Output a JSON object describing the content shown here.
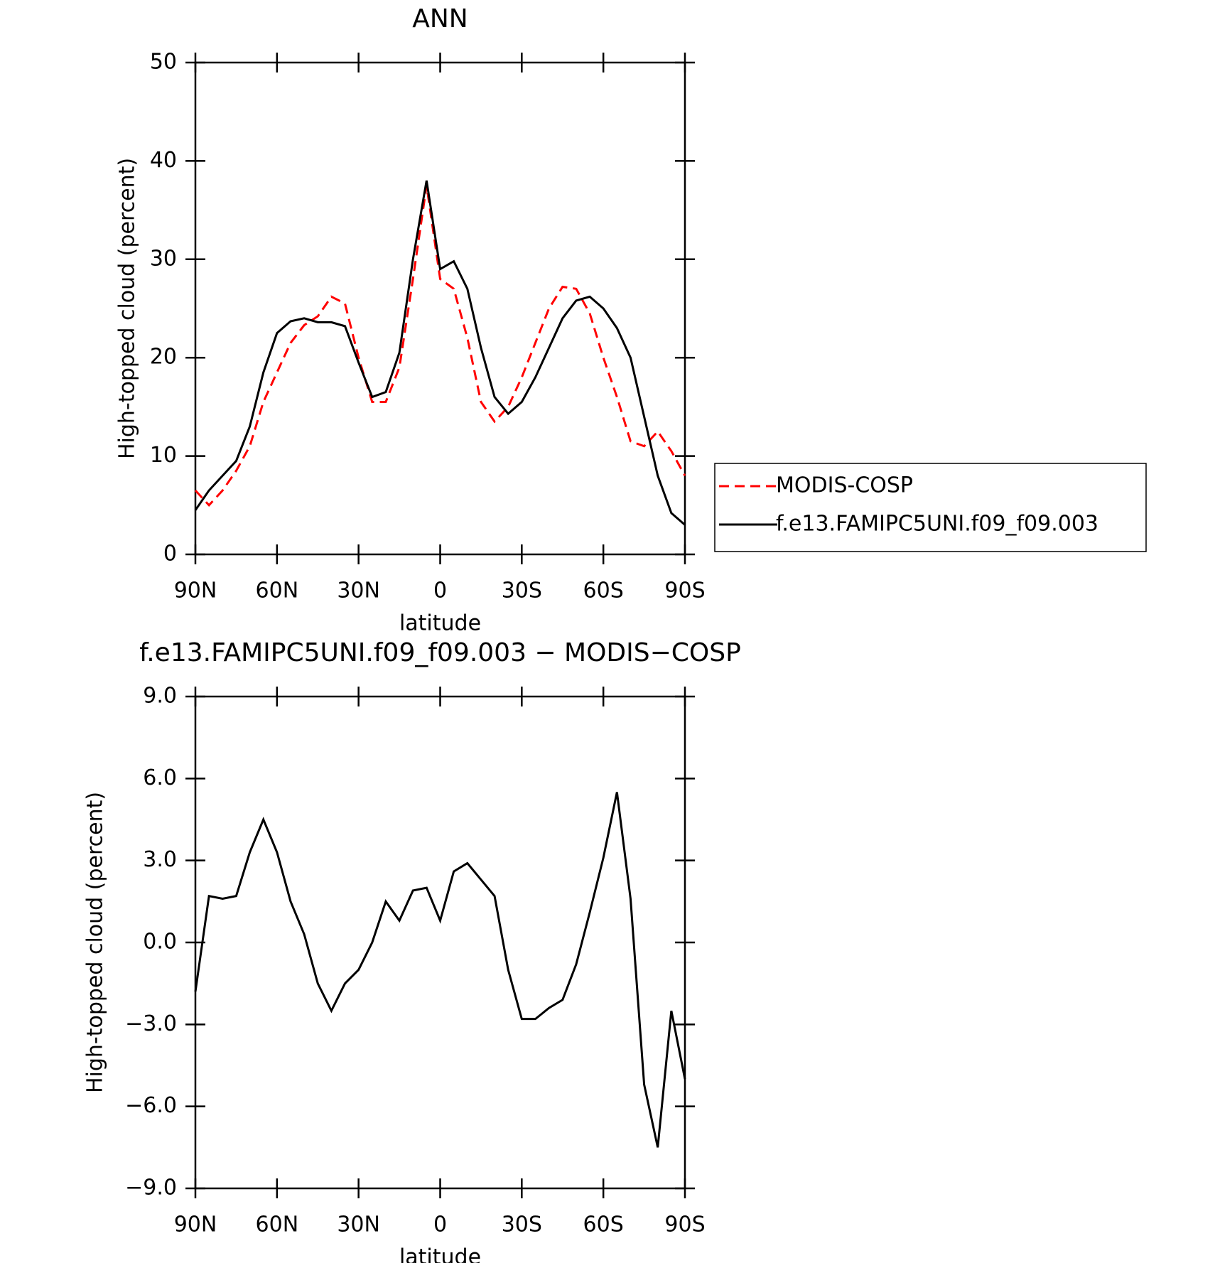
{
  "chart_data": [
    {
      "type": "line",
      "title": "ANN",
      "xlabel": "latitude",
      "ylabel": "High-topped cloud (percent)",
      "x": [
        90,
        85,
        80,
        75,
        70,
        65,
        60,
        55,
        50,
        45,
        40,
        35,
        30,
        25,
        20,
        15,
        10,
        5,
        0,
        -5,
        -10,
        -15,
        -20,
        -25,
        -30,
        -35,
        -40,
        -45,
        -50,
        -55,
        -60,
        -65,
        -70,
        -75,
        -80,
        -85,
        -90
      ],
      "series": [
        {
          "name": "MODIS-COSP",
          "color": "#ff0000",
          "dash": true,
          "values": [
            6.5,
            5,
            6.5,
            8.5,
            11,
            15.5,
            18.5,
            21.5,
            23.3,
            24.2,
            26.2,
            25.5,
            20,
            15.5,
            15.5,
            19,
            28,
            37.5,
            28,
            27,
            22,
            15.5,
            13.5,
            15,
            18,
            21.5,
            25,
            27.2,
            27,
            24.5,
            20,
            16,
            11.5,
            11,
            12.5,
            10.5,
            8
          ]
        },
        {
          "name": "f.e13.FAMIPC5UNI.f09_f09.003",
          "color": "#000000",
          "dash": false,
          "values": [
            4.5,
            6.5,
            8,
            9.5,
            13,
            18.5,
            22.5,
            23.7,
            24,
            23.6,
            23.6,
            23.2,
            19.5,
            16,
            16.5,
            20.5,
            30,
            38,
            29,
            29.8,
            27,
            21,
            16,
            14.3,
            15.5,
            18,
            21,
            24,
            25.8,
            26.2,
            25,
            23,
            20,
            14,
            8,
            4.2,
            3
          ]
        }
      ],
      "xlim": [
        90,
        -90
      ],
      "xticks": [
        {
          "value": 90,
          "label": "90N"
        },
        {
          "value": 60,
          "label": "60N"
        },
        {
          "value": 30,
          "label": "30N"
        },
        0,
        {
          "value": -30,
          "label": "30S"
        },
        {
          "value": -60,
          "label": "60S"
        },
        {
          "value": -90,
          "label": "90S"
        }
      ],
      "ylim": [
        0,
        50
      ],
      "yticks": [
        0,
        10,
        20,
        30,
        40,
        50
      ]
    },
    {
      "type": "line",
      "title": "f.e13.FAMIPC5UNI.f09_f09.003 − MODIS−COSP",
      "xlabel": "latitude",
      "ylabel": "High-topped cloud (percent)",
      "x": [
        90,
        85,
        80,
        75,
        70,
        65,
        60,
        55,
        50,
        45,
        40,
        35,
        30,
        25,
        20,
        15,
        10,
        5,
        0,
        -5,
        -10,
        -15,
        -20,
        -25,
        -30,
        -35,
        -40,
        -45,
        -50,
        -55,
        -60,
        -65,
        -70,
        -75,
        -80,
        -85,
        -90
      ],
      "series": [
        {
          "color": "#000000",
          "dash": false,
          "values": [
            -1.8,
            1.7,
            1.6,
            1.7,
            3.3,
            4.5,
            3.3,
            1.5,
            0.3,
            -1.5,
            -2.5,
            -1.5,
            -1.0,
            0.0,
            1.5,
            0.8,
            1.9,
            2.0,
            0.8,
            2.6,
            2.9,
            2.3,
            1.7,
            -1.0,
            -2.8,
            -2.8,
            -2.4,
            -2.1,
            -0.8,
            1.1,
            3.1,
            5.5,
            1.6,
            -5.2,
            -7.5,
            -2.5,
            -5.0
          ]
        }
      ],
      "xlim": [
        90,
        -90
      ],
      "xticks": [
        {
          "value": 90,
          "label": "90N"
        },
        {
          "value": 60,
          "label": "60N"
        },
        {
          "value": 30,
          "label": "30N"
        },
        0,
        {
          "value": -30,
          "label": "30S"
        },
        {
          "value": -60,
          "label": "60S"
        },
        {
          "value": -90,
          "label": "90S"
        }
      ],
      "ylim": [
        -9,
        9
      ],
      "yticks": [
        {
          "value": -9,
          "label": "−9.0"
        },
        {
          "value": -6,
          "label": "−6.0"
        },
        {
          "value": -3,
          "label": "−3.0"
        },
        {
          "value": 0,
          "label": "0.0"
        },
        {
          "value": 3,
          "label": "3.0"
        },
        {
          "value": 6,
          "label": "6.0"
        },
        {
          "value": 9,
          "label": "9.0"
        }
      ]
    }
  ]
}
